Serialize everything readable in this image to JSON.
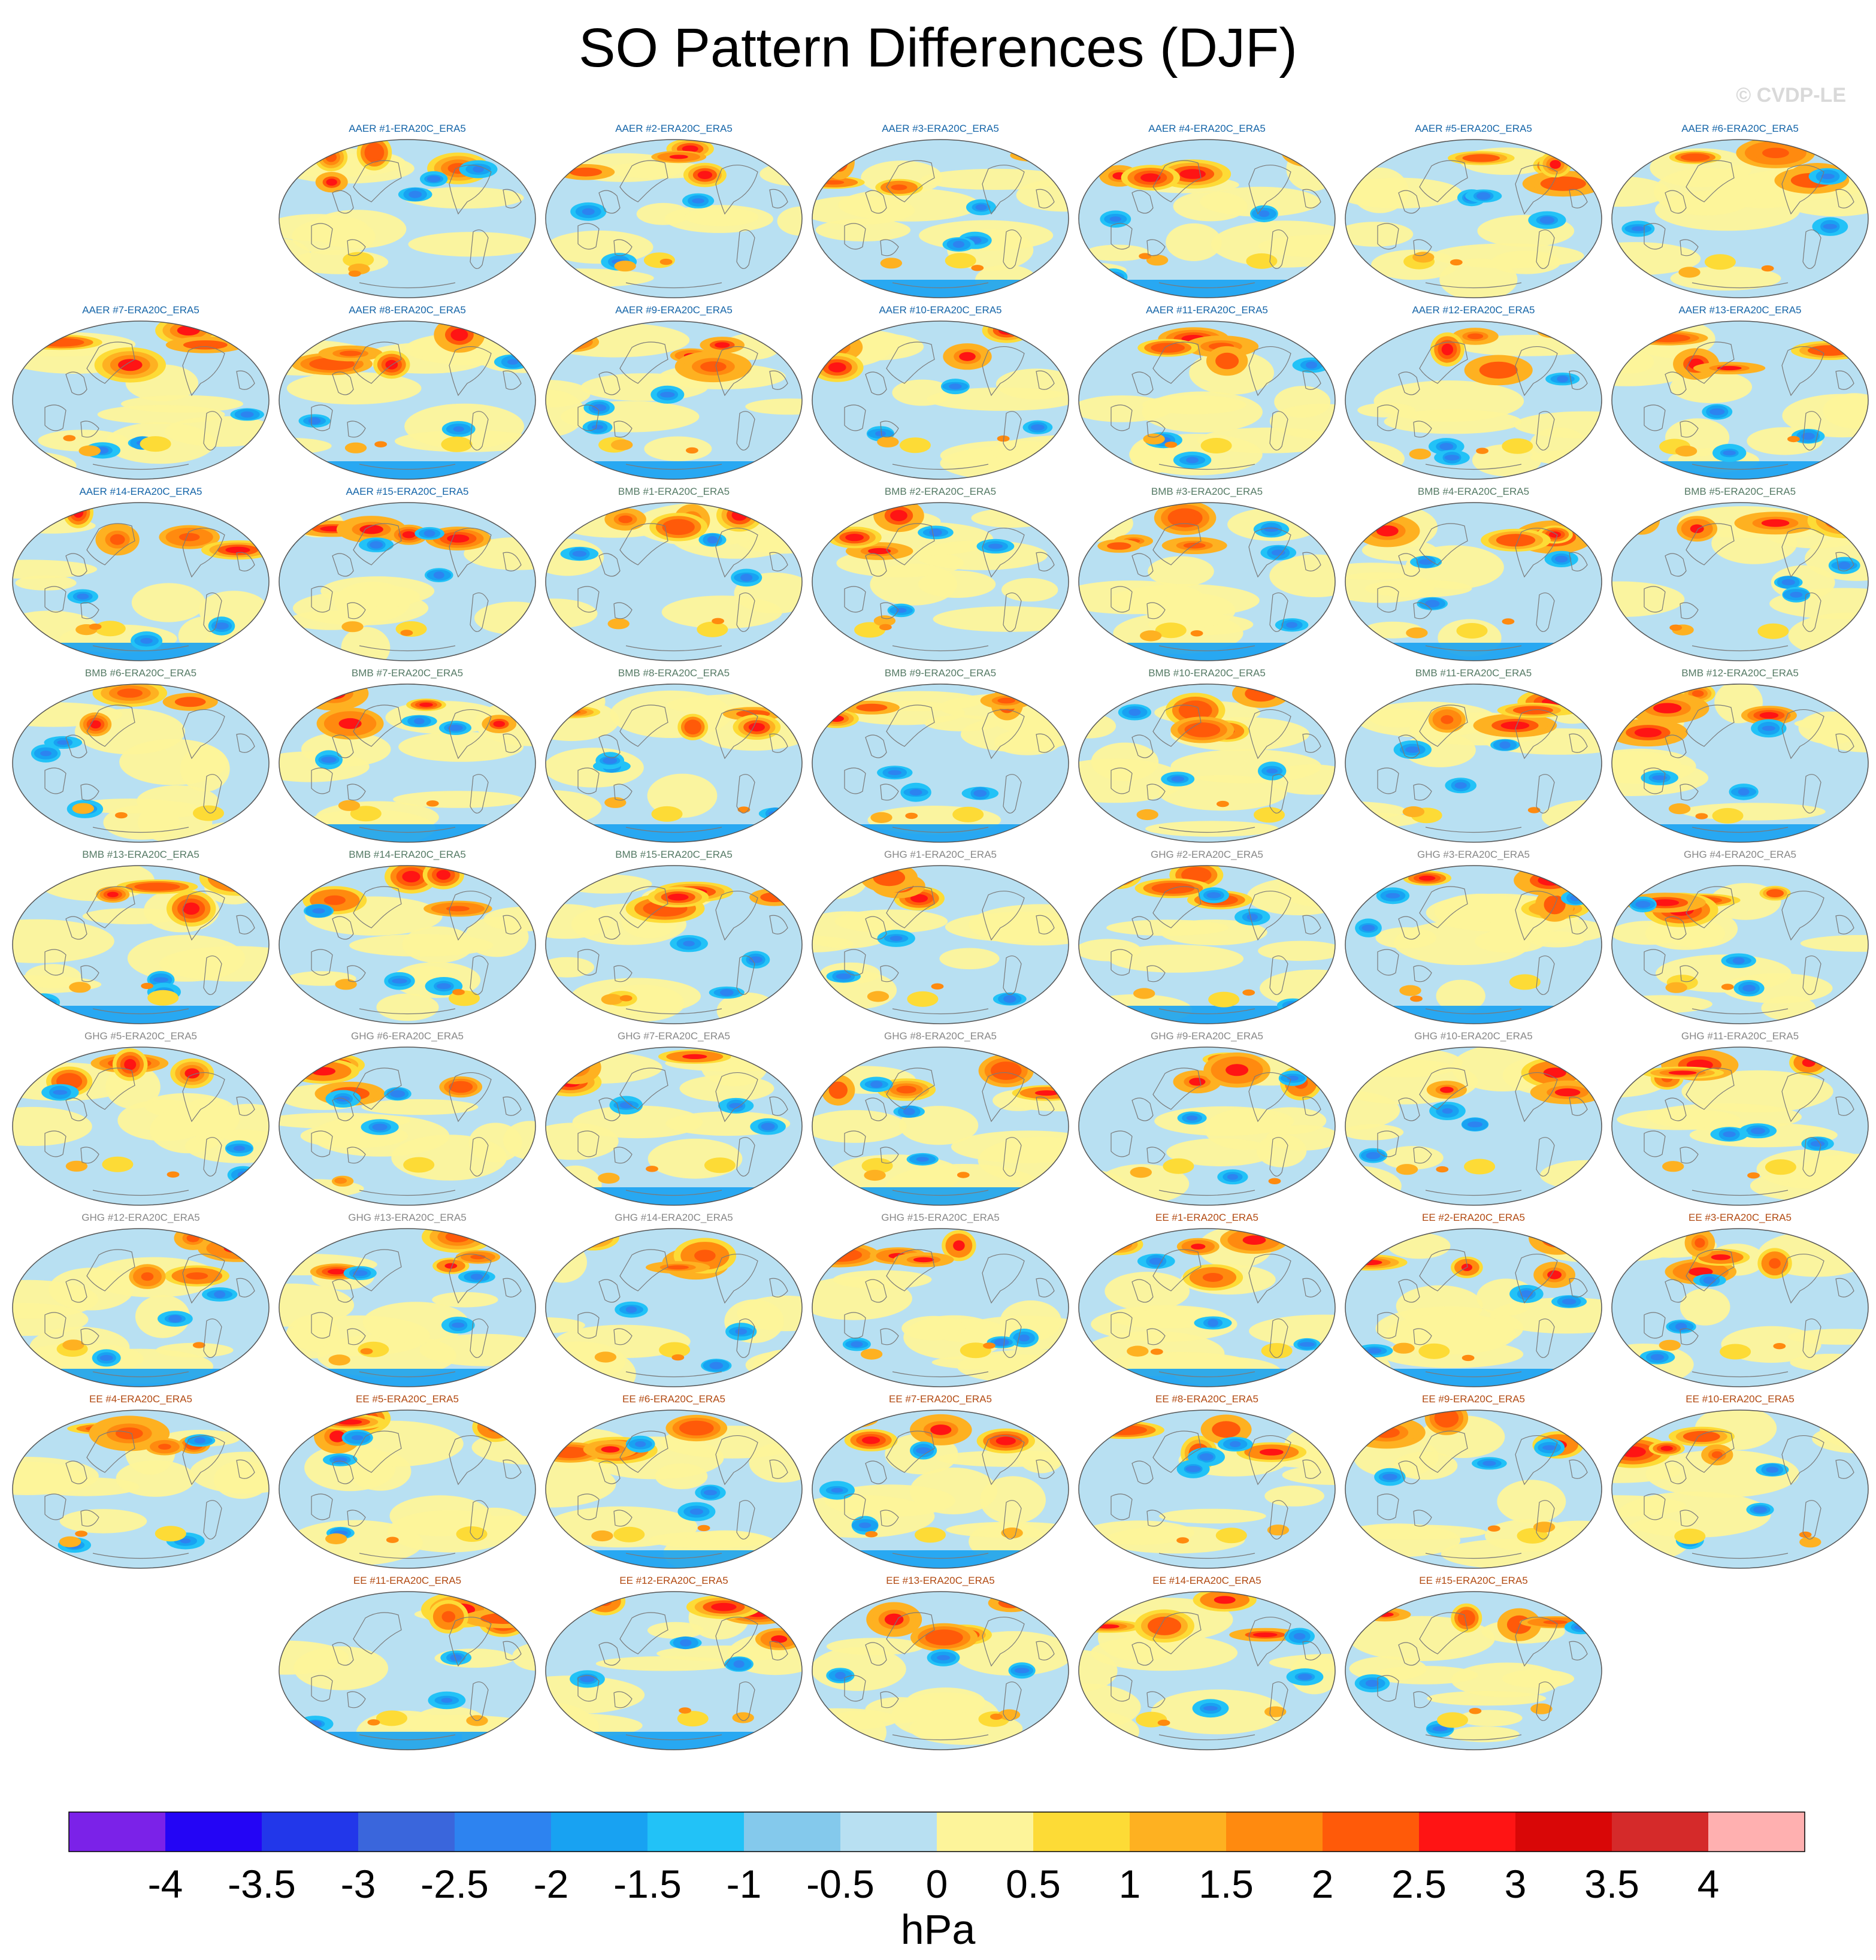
{
  "title": "SO Pattern Differences (DJF)",
  "watermark": "© CVDP-LE",
  "chart_data": {
    "type": "heatmap",
    "title": "SO Pattern Differences (DJF)",
    "units": "hPa",
    "colorbar": {
      "tick_labels": [
        "-4",
        "-3.5",
        "-3",
        "-2.5",
        "-2",
        "-1.5",
        "-1",
        "-0.5",
        "0",
        "0.5",
        "1",
        "1.5",
        "2",
        "2.5",
        "3",
        "3.5",
        "4"
      ],
      "levels": [
        -4,
        -3.5,
        -3,
        -2.5,
        -2,
        -1.5,
        -1,
        -0.5,
        0,
        0.5,
        1,
        1.5,
        2,
        2.5,
        3,
        3.5,
        4
      ],
      "colors": [
        "#7b22e8",
        "#2405f5",
        "#2237ea",
        "#3a66dc",
        "#2d83f0",
        "#18a2f2",
        "#22c2f7",
        "#84c9ec",
        "#b8e0f2",
        "#fdf49a",
        "#fddb36",
        "#feb121",
        "#ff8a0f",
        "#ff5a09",
        "#ff1414",
        "#d90707",
        "#d52a2a",
        "#ffb0b0"
      ]
    },
    "group_colors": {
      "AAER": "#1565a8",
      "BMB": "#557a65",
      "GHG": "#888888",
      "EE": "#b24a12"
    },
    "panels": [
      {
        "title": "AAER #1-ERA20C_ERA5",
        "group": "AAER"
      },
      {
        "title": "AAER #2-ERA20C_ERA5",
        "group": "AAER"
      },
      {
        "title": "AAER #3-ERA20C_ERA5",
        "group": "AAER"
      },
      {
        "title": "AAER #4-ERA20C_ERA5",
        "group": "AAER"
      },
      {
        "title": "AAER #5-ERA20C_ERA5",
        "group": "AAER"
      },
      {
        "title": "AAER #6-ERA20C_ERA5",
        "group": "AAER"
      },
      {
        "title": "AAER #7-ERA20C_ERA5",
        "group": "AAER"
      },
      {
        "title": "AAER #8-ERA20C_ERA5",
        "group": "AAER"
      },
      {
        "title": "AAER #9-ERA20C_ERA5",
        "group": "AAER"
      },
      {
        "title": "AAER #10-ERA20C_ERA5",
        "group": "AAER"
      },
      {
        "title": "AAER #11-ERA20C_ERA5",
        "group": "AAER"
      },
      {
        "title": "AAER #12-ERA20C_ERA5",
        "group": "AAER"
      },
      {
        "title": "AAER #13-ERA20C_ERA5",
        "group": "AAER"
      },
      {
        "title": "AAER #14-ERA20C_ERA5",
        "group": "AAER"
      },
      {
        "title": "AAER #15-ERA20C_ERA5",
        "group": "AAER"
      },
      {
        "title": "BMB #1-ERA20C_ERA5",
        "group": "BMB"
      },
      {
        "title": "BMB #2-ERA20C_ERA5",
        "group": "BMB"
      },
      {
        "title": "BMB #3-ERA20C_ERA5",
        "group": "BMB"
      },
      {
        "title": "BMB #4-ERA20C_ERA5",
        "group": "BMB"
      },
      {
        "title": "BMB #5-ERA20C_ERA5",
        "group": "BMB"
      },
      {
        "title": "BMB #6-ERA20C_ERA5",
        "group": "BMB"
      },
      {
        "title": "BMB #7-ERA20C_ERA5",
        "group": "BMB"
      },
      {
        "title": "BMB #8-ERA20C_ERA5",
        "group": "BMB"
      },
      {
        "title": "BMB #9-ERA20C_ERA5",
        "group": "BMB"
      },
      {
        "title": "BMB #10-ERA20C_ERA5",
        "group": "BMB"
      },
      {
        "title": "BMB #11-ERA20C_ERA5",
        "group": "BMB"
      },
      {
        "title": "BMB #12-ERA20C_ERA5",
        "group": "BMB"
      },
      {
        "title": "BMB #13-ERA20C_ERA5",
        "group": "BMB"
      },
      {
        "title": "BMB #14-ERA20C_ERA5",
        "group": "BMB"
      },
      {
        "title": "BMB #15-ERA20C_ERA5",
        "group": "BMB"
      },
      {
        "title": "GHG #1-ERA20C_ERA5",
        "group": "GHG"
      },
      {
        "title": "GHG #2-ERA20C_ERA5",
        "group": "GHG"
      },
      {
        "title": "GHG #3-ERA20C_ERA5",
        "group": "GHG"
      },
      {
        "title": "GHG #4-ERA20C_ERA5",
        "group": "GHG"
      },
      {
        "title": "GHG #5-ERA20C_ERA5",
        "group": "GHG"
      },
      {
        "title": "GHG #6-ERA20C_ERA5",
        "group": "GHG"
      },
      {
        "title": "GHG #7-ERA20C_ERA5",
        "group": "GHG"
      },
      {
        "title": "GHG #8-ERA20C_ERA5",
        "group": "GHG"
      },
      {
        "title": "GHG #9-ERA20C_ERA5",
        "group": "GHG"
      },
      {
        "title": "GHG #10-ERA20C_ERA5",
        "group": "GHG"
      },
      {
        "title": "GHG #11-ERA20C_ERA5",
        "group": "GHG"
      },
      {
        "title": "GHG #12-ERA20C_ERA5",
        "group": "GHG"
      },
      {
        "title": "GHG #13-ERA20C_ERA5",
        "group": "GHG"
      },
      {
        "title": "GHG #14-ERA20C_ERA5",
        "group": "GHG"
      },
      {
        "title": "GHG #15-ERA20C_ERA5",
        "group": "GHG"
      },
      {
        "title": "EE #1-ERA20C_ERA5",
        "group": "EE"
      },
      {
        "title": "EE #2-ERA20C_ERA5",
        "group": "EE"
      },
      {
        "title": "EE #3-ERA20C_ERA5",
        "group": "EE"
      },
      {
        "title": "EE #4-ERA20C_ERA5",
        "group": "EE"
      },
      {
        "title": "EE #5-ERA20C_ERA5",
        "group": "EE"
      },
      {
        "title": "EE #6-ERA20C_ERA5",
        "group": "EE"
      },
      {
        "title": "EE #7-ERA20C_ERA5",
        "group": "EE"
      },
      {
        "title": "EE #8-ERA20C_ERA5",
        "group": "EE"
      },
      {
        "title": "EE #9-ERA20C_ERA5",
        "group": "EE"
      },
      {
        "title": "EE #10-ERA20C_ERA5",
        "group": "EE"
      },
      {
        "title": "EE #11-ERA20C_ERA5",
        "group": "EE"
      },
      {
        "title": "EE #12-ERA20C_ERA5",
        "group": "EE"
      },
      {
        "title": "EE #13-ERA20C_ERA5",
        "group": "EE"
      },
      {
        "title": "EE #14-ERA20C_ERA5",
        "group": "EE"
      },
      {
        "title": "EE #15-ERA20C_ERA5",
        "group": "EE"
      }
    ]
  }
}
